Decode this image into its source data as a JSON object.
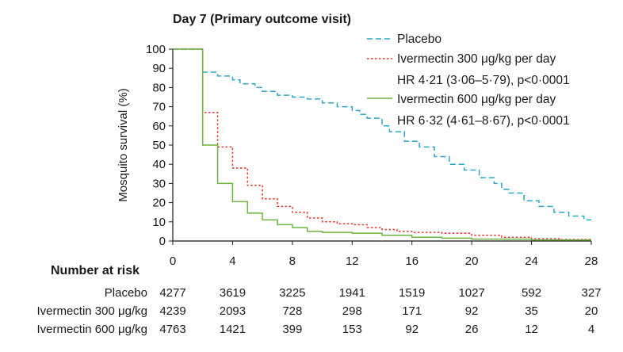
{
  "chart_data": {
    "type": "line",
    "subtype": "step",
    "title": "Day 7 (Primary outcome visit)",
    "xlabel": "",
    "ylabel": "Mosquito survival (%)",
    "xlim": [
      0,
      28
    ],
    "ylim": [
      0,
      100
    ],
    "x_ticks": [
      0,
      4,
      8,
      12,
      16,
      20,
      24,
      28
    ],
    "y_ticks": [
      0,
      10,
      20,
      30,
      40,
      50,
      60,
      70,
      80,
      90,
      100
    ],
    "grid": false,
    "legend_position": "top-right",
    "series": [
      {
        "name": "Placebo",
        "color": "#2aa7c9",
        "style": "dashed",
        "steps": [
          [
            0,
            100
          ],
          [
            1,
            100
          ],
          [
            2,
            97
          ],
          [
            2,
            88
          ],
          [
            3,
            86
          ],
          [
            4,
            84
          ],
          [
            4.5,
            82
          ],
          [
            5.5,
            80
          ],
          [
            6,
            78
          ],
          [
            7,
            76
          ],
          [
            8,
            75
          ],
          [
            9,
            74
          ],
          [
            10,
            72
          ],
          [
            11,
            70
          ],
          [
            12,
            68
          ],
          [
            12.5,
            66
          ],
          [
            13,
            64
          ],
          [
            14,
            60
          ],
          [
            14.5,
            57
          ],
          [
            15.5,
            52
          ],
          [
            16.5,
            49
          ],
          [
            17.5,
            44
          ],
          [
            18.5,
            40
          ],
          [
            19.5,
            37
          ],
          [
            20.5,
            33
          ],
          [
            21.5,
            30
          ],
          [
            22,
            27
          ],
          [
            22.5,
            25
          ],
          [
            23.5,
            21
          ],
          [
            24.5,
            18
          ],
          [
            25.5,
            15
          ],
          [
            26.5,
            13
          ],
          [
            27.5,
            11
          ],
          [
            28,
            11
          ]
        ]
      },
      {
        "name": "Ivermectin 300 μg/kg per day",
        "annotation": "HR 4·21 (3·06–5·79), p<0·0001",
        "color": "#e8322b",
        "style": "dotted",
        "steps": [
          [
            0,
            100
          ],
          [
            1,
            100
          ],
          [
            2,
            97
          ],
          [
            2,
            67
          ],
          [
            3,
            49
          ],
          [
            4,
            38
          ],
          [
            5,
            29
          ],
          [
            6,
            22
          ],
          [
            7,
            18
          ],
          [
            8,
            15
          ],
          [
            9,
            12
          ],
          [
            10,
            10
          ],
          [
            11,
            9
          ],
          [
            12,
            8.5
          ],
          [
            13,
            7
          ],
          [
            14,
            6
          ],
          [
            15,
            5
          ],
          [
            16,
            4.5
          ],
          [
            18,
            4
          ],
          [
            20,
            3
          ],
          [
            22,
            2
          ],
          [
            24,
            1.2
          ],
          [
            26,
            0.8
          ],
          [
            28,
            0.8
          ]
        ]
      },
      {
        "name": "Ivermectin 600 μg/kg per day",
        "annotation": "HR 6·32 (4·61–8·67), p<0·0001",
        "color": "#6db33f",
        "style": "solid",
        "steps": [
          [
            0,
            100
          ],
          [
            1,
            100
          ],
          [
            2,
            96
          ],
          [
            2,
            50
          ],
          [
            3,
            30
          ],
          [
            4,
            20.5
          ],
          [
            5,
            14.5
          ],
          [
            6,
            11
          ],
          [
            7,
            8.5
          ],
          [
            8,
            7
          ],
          [
            9,
            5
          ],
          [
            10,
            4.5
          ],
          [
            12,
            4
          ],
          [
            14,
            3
          ],
          [
            16,
            2
          ],
          [
            18,
            1.5
          ],
          [
            20,
            1
          ],
          [
            24,
            0.5
          ],
          [
            28,
            0.5
          ]
        ]
      }
    ]
  },
  "risk_table": {
    "heading": "Number at risk",
    "times": [
      "0",
      "4",
      "8",
      "12",
      "16",
      "20",
      "24",
      "28"
    ],
    "rows": [
      {
        "label": "Placebo",
        "values": [
          "4277",
          "3619",
          "3225",
          "1941",
          "1519",
          "1027",
          "592",
          "327"
        ]
      },
      {
        "label": "Ivermectin 300 μg/kg",
        "values": [
          "4239",
          "2093",
          "728",
          "298",
          "171",
          "92",
          "35",
          "20"
        ]
      },
      {
        "label": "Ivermectin 600 μg/kg",
        "values": [
          "4763",
          "1421",
          "399",
          "153",
          "92",
          "26",
          "12",
          "4"
        ]
      }
    ]
  }
}
